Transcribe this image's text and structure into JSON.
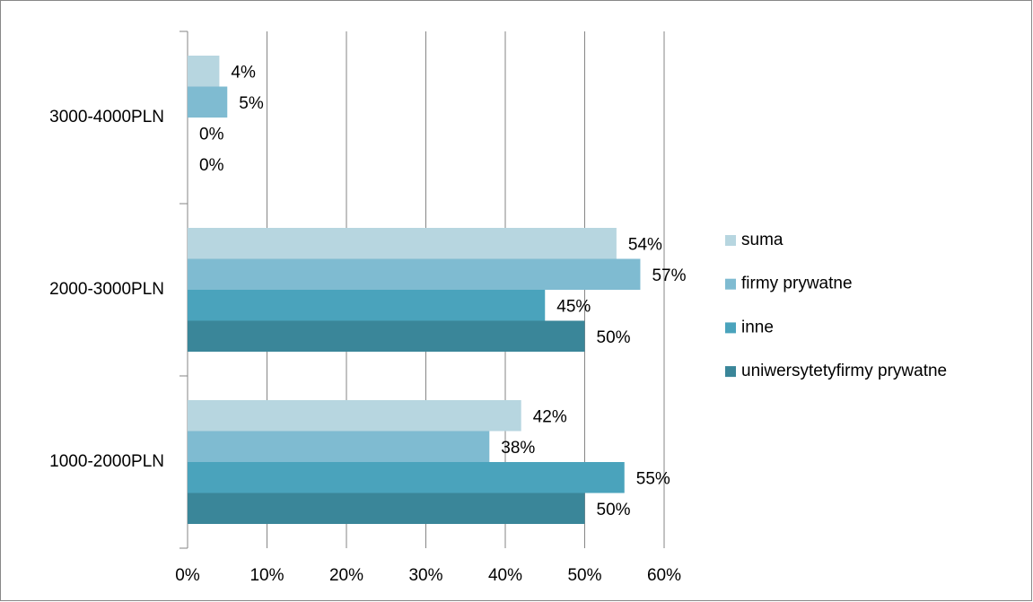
{
  "chart_data": {
    "type": "bar",
    "orientation": "horizontal",
    "categories": [
      "3000-4000PLN",
      "2000-3000PLN",
      "1000-2000PLN"
    ],
    "series": [
      {
        "name": "suma",
        "color": "#b7d6e0",
        "values": [
          4,
          54,
          42
        ],
        "value_labels": [
          "4%",
          "54%",
          "42%"
        ]
      },
      {
        "name": "firmy prywatne",
        "color": "#7fbbd1",
        "values": [
          5,
          57,
          38
        ],
        "value_labels": [
          "5%",
          "57%",
          "38%"
        ]
      },
      {
        "name": "inne",
        "color": "#4aa3bc",
        "values": [
          0,
          45,
          55
        ],
        "value_labels": [
          "0%",
          "45%",
          "55%"
        ]
      },
      {
        "name": "uniwersytetyfirmy prywatne",
        "color": "#3a8699",
        "values": [
          0,
          50,
          50
        ],
        "value_labels": [
          "0%",
          "50%",
          "50%"
        ]
      }
    ],
    "xlim": [
      0,
      60
    ],
    "xticks": [
      {
        "value": 0,
        "label": "0%"
      },
      {
        "value": 10,
        "label": "10%"
      },
      {
        "value": 20,
        "label": "20%"
      },
      {
        "value": 30,
        "label": "30%"
      },
      {
        "value": 40,
        "label": "40%"
      },
      {
        "value": 50,
        "label": "50%"
      },
      {
        "value": 60,
        "label": "60%"
      }
    ],
    "grid": true,
    "legend": "right"
  }
}
